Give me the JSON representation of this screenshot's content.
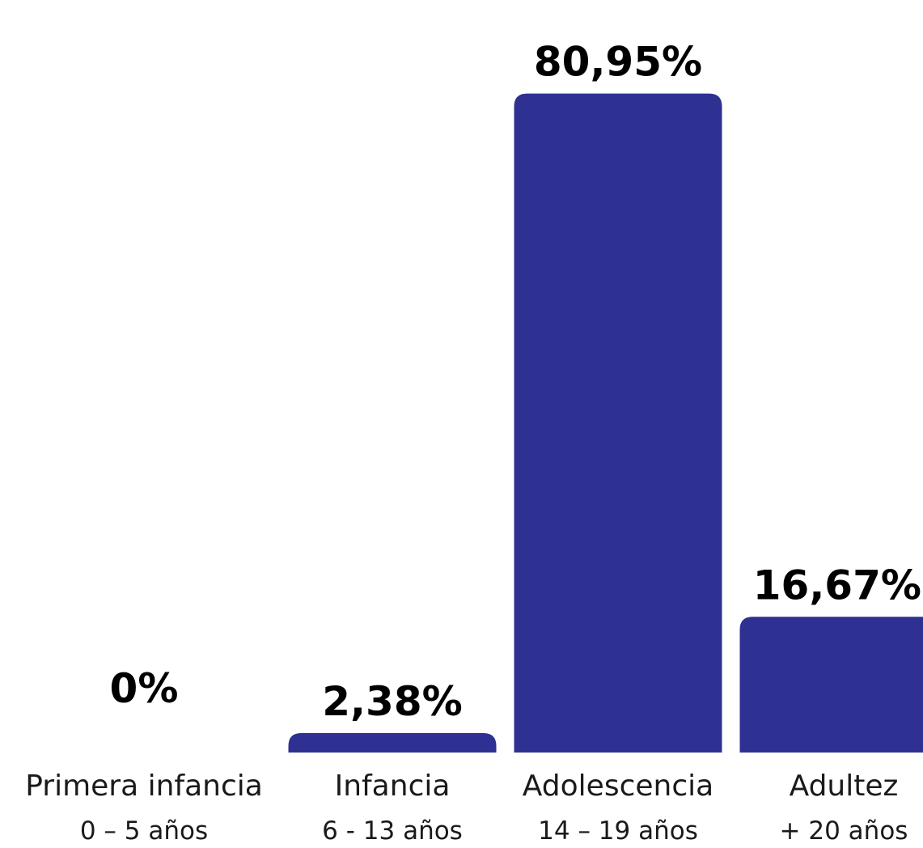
{
  "chart_data": {
    "type": "bar",
    "title": "",
    "xlabel": "",
    "ylabel": "",
    "ylim": [
      0,
      100
    ],
    "grid": false,
    "legend": "none",
    "bar_color": "#2e3192",
    "categories": [
      {
        "label": "Primera infancia",
        "range": "0 – 5 años"
      },
      {
        "label": "Infancia",
        "range": "6 - 13 años"
      },
      {
        "label": "Adolescencia",
        "range": "14 – 19 años"
      },
      {
        "label": "Adultez",
        "range": "+ 20 años"
      }
    ],
    "values": [
      0,
      2.38,
      80.95,
      16.67
    ],
    "value_labels": [
      "0%",
      "2,38%",
      "80,95%",
      "16,67%"
    ]
  }
}
